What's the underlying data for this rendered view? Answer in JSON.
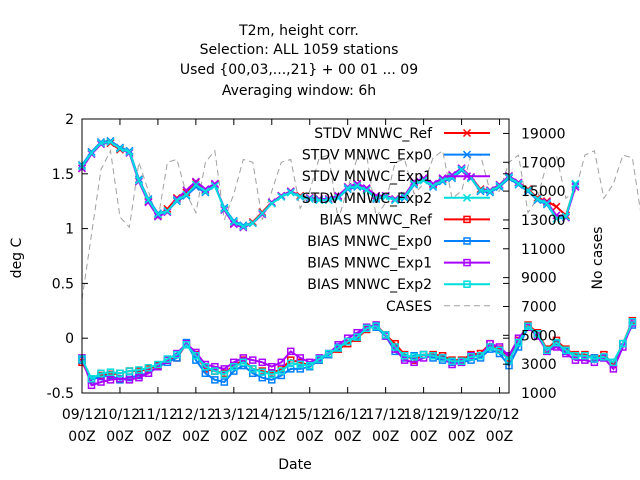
{
  "chart_data": {
    "type": "line",
    "title": [
      "T2m, height corr.",
      "Selection: ALL   1059 stations",
      "Used {00,03,...,21} + 00 01 ... 09",
      "Averaging window:  6h"
    ],
    "xlabel": "Date",
    "ylabel": "deg C",
    "y2label": "No cases",
    "x_tick_labels": [
      [
        "09/12",
        "00Z"
      ],
      [
        "10/12",
        "00Z"
      ],
      [
        "11/12",
        "00Z"
      ],
      [
        "12/12",
        "00Z"
      ],
      [
        "13/12",
        "00Z"
      ],
      [
        "14/12",
        "00Z"
      ],
      [
        "15/12",
        "00Z"
      ],
      [
        "16/12",
        "00Z"
      ],
      [
        "17/12",
        "00Z"
      ],
      [
        "18/12",
        "00Z"
      ],
      [
        "19/12",
        "00Z"
      ],
      [
        "20/12",
        "00Z"
      ]
    ],
    "xlim": [
      0,
      11.25
    ],
    "ylim": [
      -0.5,
      2
    ],
    "yticks": [
      -0.5,
      0,
      0.5,
      1,
      1.5,
      2
    ],
    "ytick_labels": [
      "-0.5",
      "0",
      "0.5",
      "1",
      "1.5",
      "2"
    ],
    "y2lim": [
      1000,
      20000
    ],
    "y2ticks": [
      1000,
      3000,
      5000,
      7000,
      9000,
      11000,
      13000,
      15000,
      17000,
      19000
    ],
    "legend_position": "top-right",
    "grid": false,
    "x_step": 0.25,
    "series": [
      {
        "name": "STDV MNWC_Ref",
        "color": "#ff0000",
        "marker": "x",
        "axis": "y1",
        "values": [
          1.55,
          1.7,
          1.78,
          1.78,
          1.72,
          1.7,
          1.45,
          1.25,
          1.12,
          1.18,
          1.28,
          1.33,
          1.42,
          1.35,
          1.4,
          1.18,
          1.05,
          1.02,
          1.06,
          1.15,
          1.24,
          1.3,
          1.34,
          1.3,
          1.28,
          1.27,
          1.27,
          1.29,
          1.38,
          1.4,
          1.36,
          1.28,
          1.3,
          1.27,
          1.3,
          1.42,
          1.45,
          1.4,
          1.45,
          1.48,
          1.55,
          1.47,
          1.36,
          1.35,
          1.4,
          1.48,
          1.42,
          1.36,
          1.28,
          1.25,
          1.2,
          1.12,
          1.4
        ]
      },
      {
        "name": "STDV MNWC_Exp0",
        "color": "#0080ff",
        "marker": "x",
        "axis": "y1",
        "values": [
          1.58,
          1.7,
          1.79,
          1.8,
          1.74,
          1.71,
          1.45,
          1.27,
          1.14,
          1.16,
          1.25,
          1.3,
          1.38,
          1.33,
          1.39,
          1.19,
          1.07,
          1.03,
          1.05,
          1.14,
          1.23,
          1.29,
          1.33,
          1.29,
          1.27,
          1.26,
          1.26,
          1.28,
          1.36,
          1.38,
          1.35,
          1.27,
          1.29,
          1.26,
          1.28,
          1.4,
          1.44,
          1.38,
          1.43,
          1.46,
          1.53,
          1.46,
          1.34,
          1.33,
          1.38,
          1.46,
          1.4,
          1.34,
          1.26,
          1.22,
          1.09,
          1.1,
          1.4
        ]
      },
      {
        "name": "STDV MNWC_Exp1",
        "color": "#aa00ff",
        "marker": "x",
        "axis": "y1",
        "values": [
          1.55,
          1.68,
          1.77,
          1.79,
          1.73,
          1.69,
          1.43,
          1.24,
          1.11,
          1.15,
          1.27,
          1.35,
          1.43,
          1.36,
          1.41,
          1.17,
          1.04,
          1.01,
          1.05,
          1.13,
          1.24,
          1.3,
          1.34,
          1.29,
          1.28,
          1.27,
          1.27,
          1.3,
          1.38,
          1.41,
          1.37,
          1.3,
          1.3,
          1.27,
          1.3,
          1.43,
          1.46,
          1.41,
          1.46,
          1.49,
          1.55,
          1.47,
          1.35,
          1.35,
          1.4,
          1.48,
          1.42,
          1.35,
          1.27,
          1.24,
          1.12,
          1.1,
          1.38
        ]
      },
      {
        "name": "STDV MNWC_Exp2",
        "color": "#00dddd",
        "marker": "x",
        "axis": "y1",
        "values": [
          1.57,
          1.69,
          1.78,
          1.79,
          1.73,
          1.7,
          1.44,
          1.26,
          1.13,
          1.16,
          1.26,
          1.31,
          1.4,
          1.34,
          1.39,
          1.18,
          1.06,
          1.02,
          1.05,
          1.14,
          1.23,
          1.29,
          1.33,
          1.29,
          1.27,
          1.26,
          1.26,
          1.28,
          1.37,
          1.39,
          1.35,
          1.28,
          1.29,
          1.26,
          1.29,
          1.41,
          1.44,
          1.39,
          1.44,
          1.47,
          1.54,
          1.46,
          1.35,
          1.34,
          1.39,
          1.47,
          1.41,
          1.35,
          1.27,
          1.23,
          1.09,
          1.11,
          1.41
        ]
      },
      {
        "name": "BIAS MNWC_Ref",
        "color": "#ff0000",
        "marker": "square",
        "axis": "y1",
        "values": [
          -0.22,
          -0.38,
          -0.34,
          -0.33,
          -0.32,
          -0.3,
          -0.3,
          -0.28,
          -0.25,
          -0.2,
          -0.18,
          -0.05,
          -0.15,
          -0.28,
          -0.3,
          -0.32,
          -0.25,
          -0.2,
          -0.28,
          -0.3,
          -0.32,
          -0.28,
          -0.2,
          -0.22,
          -0.25,
          -0.2,
          -0.15,
          -0.1,
          -0.05,
          0.0,
          0.08,
          0.12,
          0.03,
          -0.05,
          -0.15,
          -0.2,
          -0.15,
          -0.15,
          -0.16,
          -0.2,
          -0.2,
          -0.15,
          -0.14,
          -0.05,
          -0.1,
          -0.18,
          -0.02,
          0.12,
          0.05,
          -0.1,
          -0.02,
          -0.1,
          -0.15,
          -0.15,
          -0.18,
          -0.15,
          -0.24,
          -0.05,
          0.16
        ]
      },
      {
        "name": "BIAS MNWC_Exp0",
        "color": "#0080ff",
        "marker": "square",
        "axis": "y1",
        "values": [
          -0.2,
          -0.38,
          -0.35,
          -0.34,
          -0.38,
          -0.36,
          -0.34,
          -0.32,
          -0.26,
          -0.22,
          -0.18,
          -0.04,
          -0.2,
          -0.32,
          -0.38,
          -0.4,
          -0.3,
          -0.25,
          -0.32,
          -0.36,
          -0.38,
          -0.34,
          -0.28,
          -0.28,
          -0.26,
          -0.2,
          -0.15,
          -0.08,
          -0.03,
          0.02,
          0.1,
          0.1,
          0.02,
          -0.12,
          -0.18,
          -0.16,
          -0.15,
          -0.18,
          -0.2,
          -0.22,
          -0.22,
          -0.2,
          -0.18,
          -0.1,
          -0.14,
          -0.25,
          -0.08,
          0.1,
          0.04,
          -0.12,
          -0.05,
          -0.12,
          -0.16,
          -0.16,
          -0.18,
          -0.18,
          -0.22,
          -0.05,
          0.12
        ]
      },
      {
        "name": "BIAS MNWC_Exp1",
        "color": "#aa00ff",
        "marker": "square",
        "axis": "y1",
        "values": [
          -0.18,
          -0.43,
          -0.4,
          -0.38,
          -0.37,
          -0.38,
          -0.36,
          -0.32,
          -0.26,
          -0.2,
          -0.14,
          -0.05,
          -0.13,
          -0.24,
          -0.26,
          -0.28,
          -0.22,
          -0.18,
          -0.2,
          -0.22,
          -0.26,
          -0.22,
          -0.12,
          -0.18,
          -0.22,
          -0.18,
          -0.14,
          -0.06,
          0.0,
          0.05,
          0.1,
          0.12,
          0.02,
          -0.1,
          -0.2,
          -0.22,
          -0.18,
          -0.16,
          -0.18,
          -0.24,
          -0.22,
          -0.16,
          -0.16,
          -0.05,
          -0.08,
          -0.16,
          0.0,
          0.1,
          0.02,
          -0.12,
          -0.08,
          -0.14,
          -0.2,
          -0.2,
          -0.22,
          -0.18,
          -0.28,
          -0.08,
          0.14
        ]
      },
      {
        "name": "BIAS MNWC_Exp2",
        "color": "#00dddd",
        "marker": "square",
        "axis": "y1",
        "values": [
          -0.19,
          -0.37,
          -0.32,
          -0.31,
          -0.32,
          -0.3,
          -0.29,
          -0.27,
          -0.24,
          -0.19,
          -0.15,
          -0.06,
          -0.16,
          -0.26,
          -0.3,
          -0.33,
          -0.26,
          -0.22,
          -0.28,
          -0.31,
          -0.33,
          -0.3,
          -0.23,
          -0.24,
          -0.25,
          -0.19,
          -0.14,
          -0.09,
          -0.03,
          0.01,
          0.09,
          0.11,
          0.03,
          -0.08,
          -0.16,
          -0.17,
          -0.15,
          -0.16,
          -0.18,
          -0.21,
          -0.21,
          -0.17,
          -0.16,
          -0.08,
          -0.11,
          -0.2,
          -0.04,
          0.11,
          0.04,
          -0.11,
          -0.04,
          -0.11,
          -0.16,
          -0.16,
          -0.19,
          -0.17,
          -0.22,
          -0.05,
          0.15
        ]
      },
      {
        "name": "CASES",
        "color": "#a0a0a0",
        "marker": "none",
        "axis": "y2",
        "values": [
          7500,
          12000,
          16500,
          17800,
          13200,
          12500,
          17000,
          15000,
          13000,
          17000,
          17200,
          14800,
          13500,
          17000,
          17800,
          13000,
          14800,
          17200,
          17000,
          13000,
          15000,
          17000,
          17200,
          13800,
          15000,
          17300,
          17500,
          13000,
          15200,
          17300,
          17500,
          13200,
          14200,
          17000,
          17200,
          14800,
          15500,
          17300,
          17800,
          14500,
          15000,
          17500,
          17500,
          15000,
          15000,
          17000,
          17500,
          13500,
          14500,
          17000,
          17500,
          14500,
          15000,
          17500,
          17800,
          14500,
          15500,
          17500,
          17300,
          13000,
          14000,
          17000,
          17200
        ]
      }
    ]
  }
}
